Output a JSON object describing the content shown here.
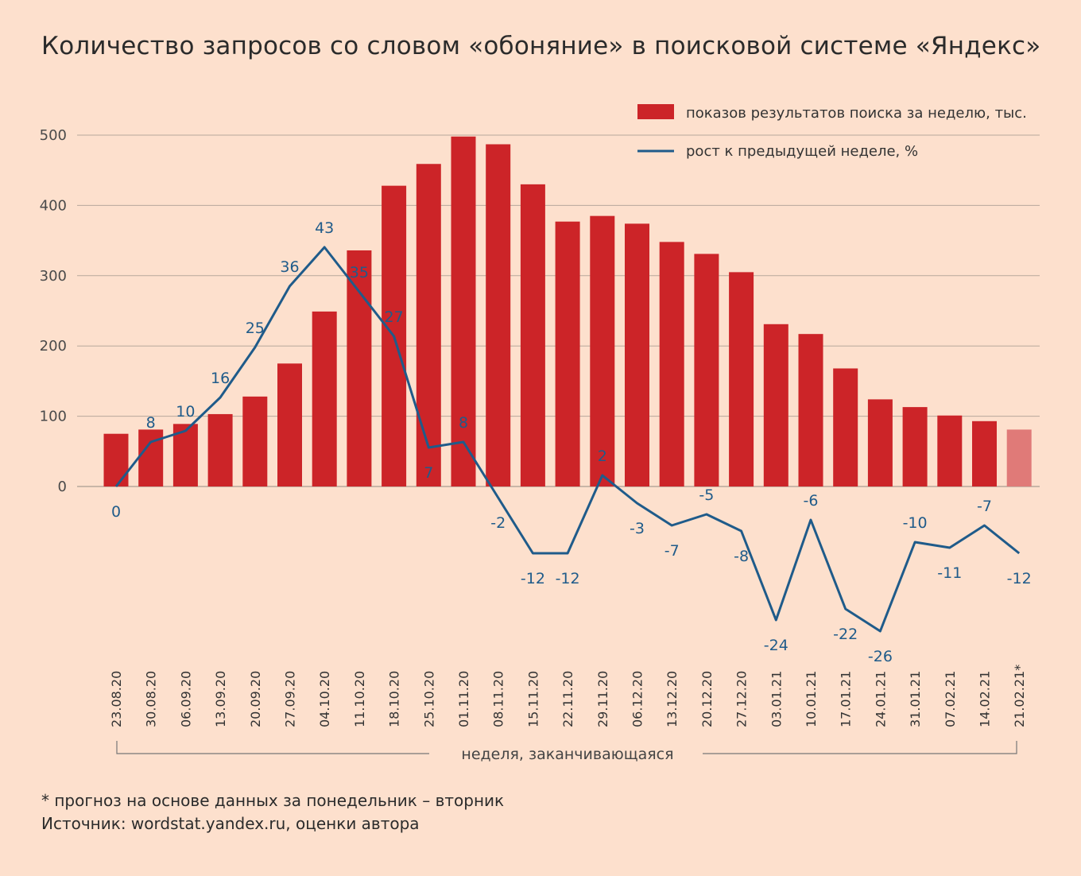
{
  "title": "Количество запросов со словом «обоняние» в поисковой системе «Яндекс»",
  "footnotes": {
    "note": "* прогноз на основе данных за понедельник – вторник",
    "source": "Источник: wordstat.yandex.ru, оценки автора"
  },
  "colors": {
    "background": "#fde0cd",
    "bar": "#cc2428",
    "bar_forecast": "#e07a78",
    "line": "#1f5b8a",
    "grid": "#b7a79b"
  },
  "chart_data": {
    "type": "bar",
    "title": "Количество запросов со словом «обоняние» в поисковой системе «Яндекс»",
    "xlabel": "неделя, заканчивающаяся",
    "ylabel": "",
    "ylim": [
      0,
      500
    ],
    "yticks": [
      0,
      100,
      200,
      300,
      400,
      500
    ],
    "grid": true,
    "legend_position": "top-right",
    "categories": [
      "23.08.20",
      "30.08.20",
      "06.09.20",
      "13.09.20",
      "20.09.20",
      "27.09.20",
      "04.10.20",
      "11.10.20",
      "18.10.20",
      "25.10.20",
      "01.11.20",
      "08.11.20",
      "15.11.20",
      "22.11.20",
      "29.11.20",
      "06.12.20",
      "13.12.20",
      "20.12.20",
      "27.12.20",
      "03.01.21",
      "10.01.21",
      "17.01.21",
      "24.01.21",
      "31.01.21",
      "07.02.21",
      "14.02.21",
      "21.02.21*"
    ],
    "series": [
      {
        "name": "показов результатов поиска за неделю, тыс.",
        "type": "bar",
        "values": [
          75,
          81,
          89,
          103,
          128,
          175,
          249,
          336,
          428,
          459,
          498,
          487,
          430,
          377,
          385,
          374,
          348,
          331,
          305,
          231,
          217,
          168,
          124,
          113,
          101,
          93,
          81
        ],
        "forecast_last": true
      },
      {
        "name": "рост к предыдущей неделе, %",
        "type": "line",
        "values": [
          0,
          8,
          10,
          16,
          25,
          36,
          43,
          35,
          27,
          7,
          8,
          -2,
          -12,
          -12,
          2,
          -3,
          -7,
          -5,
          -8,
          -24,
          -6,
          -22,
          -26,
          -10,
          -11,
          -7,
          -12
        ]
      }
    ]
  }
}
